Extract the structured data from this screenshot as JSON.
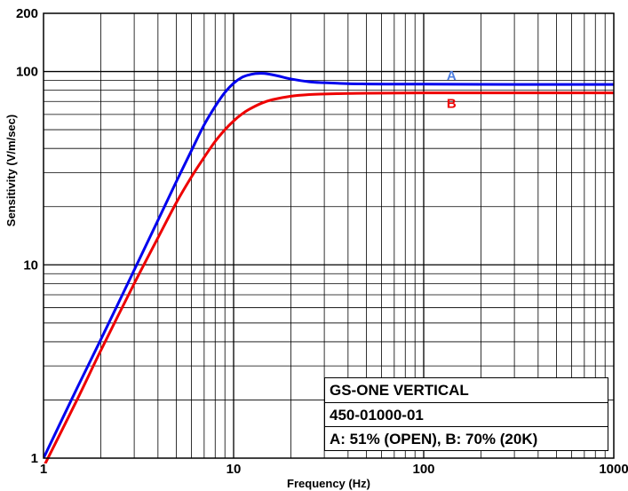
{
  "chart_data": {
    "type": "line",
    "title": "",
    "xlabel": "Frequency (Hz)",
    "ylabel": "Sensitivity (V/m/sec)",
    "xscale": "log",
    "yscale": "log",
    "xlim": [
      1,
      1000
    ],
    "ylim": [
      1,
      200
    ],
    "grid": true,
    "x_tick_labels": [
      "1",
      "10",
      "100",
      "1000"
    ],
    "y_tick_labels": [
      "1",
      "10",
      "100",
      "200"
    ],
    "series": [
      {
        "name": "A",
        "color": "#0000ee",
        "label_color": "#4f7fe0",
        "x": [
          1,
          1.5,
          2,
          3,
          4,
          5,
          6,
          7,
          8,
          9,
          10,
          11,
          12,
          13,
          14,
          15,
          17,
          20,
          25,
          30,
          40,
          50,
          70,
          100,
          200,
          500,
          1000
        ],
        "y": [
          1,
          2.3,
          4.1,
          9.4,
          17,
          27,
          39,
          53,
          66,
          78,
          87,
          93,
          96,
          97.5,
          97.8,
          97.3,
          95,
          91.5,
          88.5,
          87.5,
          86.5,
          86.2,
          86,
          86,
          85.8,
          85.7,
          85.7
        ]
      },
      {
        "name": "B",
        "color": "#ee0000",
        "label_color": "#ee0000",
        "x": [
          1,
          1.5,
          2,
          3,
          4,
          5,
          6,
          7,
          8,
          9,
          10,
          11,
          12,
          14,
          16,
          20,
          25,
          30,
          40,
          50,
          100,
          200,
          500,
          1000
        ],
        "y": [
          0.9,
          2.0,
          3.6,
          8.0,
          13.8,
          21,
          28.5,
          36,
          43.5,
          50,
          55.5,
          60,
          63.5,
          68.5,
          71.5,
          74.5,
          76,
          76.5,
          77,
          77.2,
          77.5,
          77.5,
          77.5,
          77.5
        ]
      }
    ]
  },
  "legend_box": {
    "line1": "GS-ONE VERTICAL",
    "line2": "450-01000-01",
    "line3": "A: 51% (OPEN),  B: 70% (20K)"
  }
}
